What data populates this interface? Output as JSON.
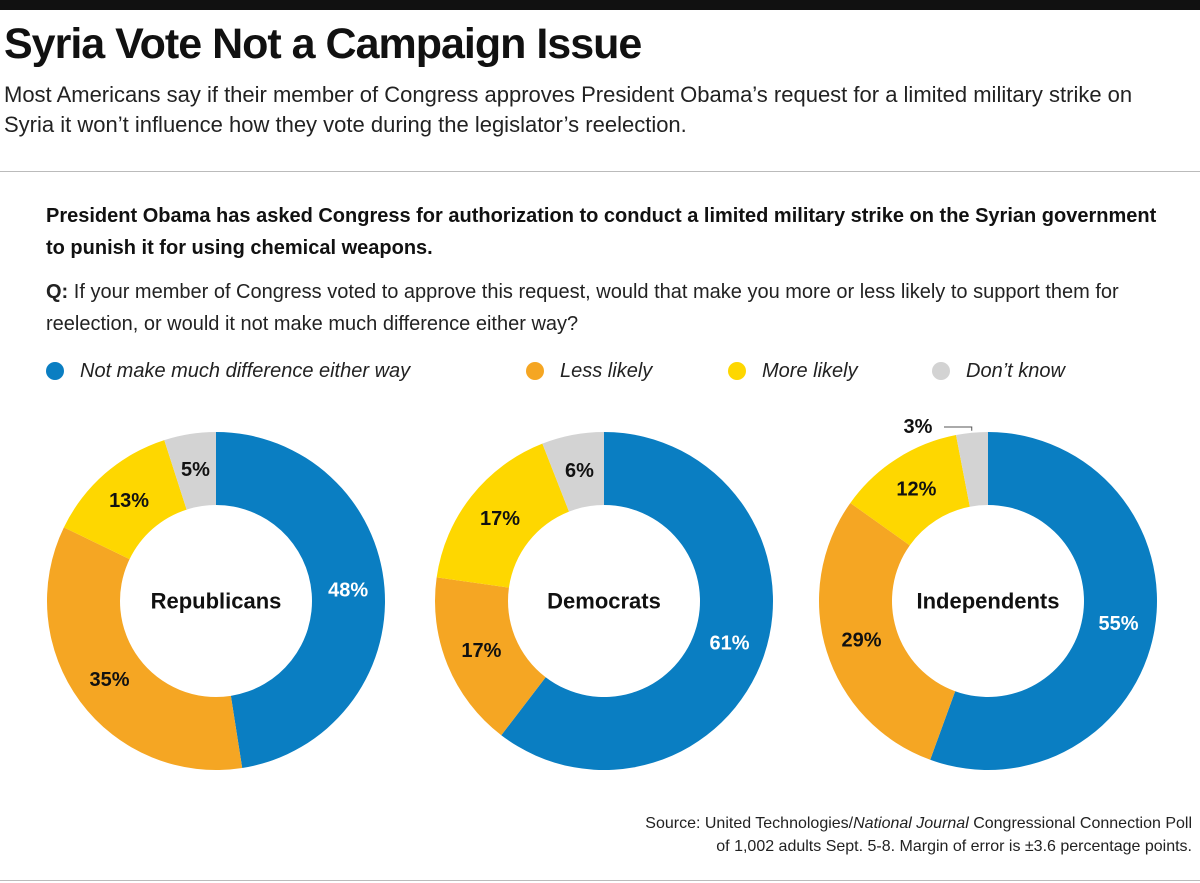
{
  "title": "Syria Vote Not a Campaign Issue",
  "subtitle": "Most Americans say if their member of Congress approves President Obama’s request for a limited military strike on Syria it won’t influence how they vote during the legislator’s reelection.",
  "lead": "President Obama has asked Congress for authorization to conduct a limited military strike on the Syrian government to punish it for using chemical weapons.",
  "question": {
    "prefix": "Q:",
    "text": "If your member of Congress voted to approve this request, would that make you more or less likely to support them for reelection, or would it not make much difference either way?"
  },
  "colors": {
    "not_much_difference": "#0a7ec2",
    "less_likely": "#f5a623",
    "more_likely": "#fed700",
    "dont_know": "#d3d3d3"
  },
  "chart_data": {
    "type": "pie",
    "variant": "donut",
    "categories": [
      "Not make much difference either way",
      "Less likely",
      "More likely",
      "Don’t know"
    ],
    "legend_placement": "top",
    "series": [
      {
        "name": "Republicans",
        "values": [
          48,
          35,
          13,
          5
        ]
      },
      {
        "name": "Democrats",
        "values": [
          61,
          17,
          17,
          6
        ]
      },
      {
        "name": "Independents",
        "values": [
          55,
          29,
          12,
          3
        ]
      }
    ],
    "value_suffix": "%"
  },
  "source": {
    "prefix": "Source: United Technologies/",
    "publication": "National Journal",
    "suffix": " Congressional Connection Poll",
    "line2": "of 1,002 adults Sept. 5-8. Margin of error is ±3.6 percentage points."
  }
}
